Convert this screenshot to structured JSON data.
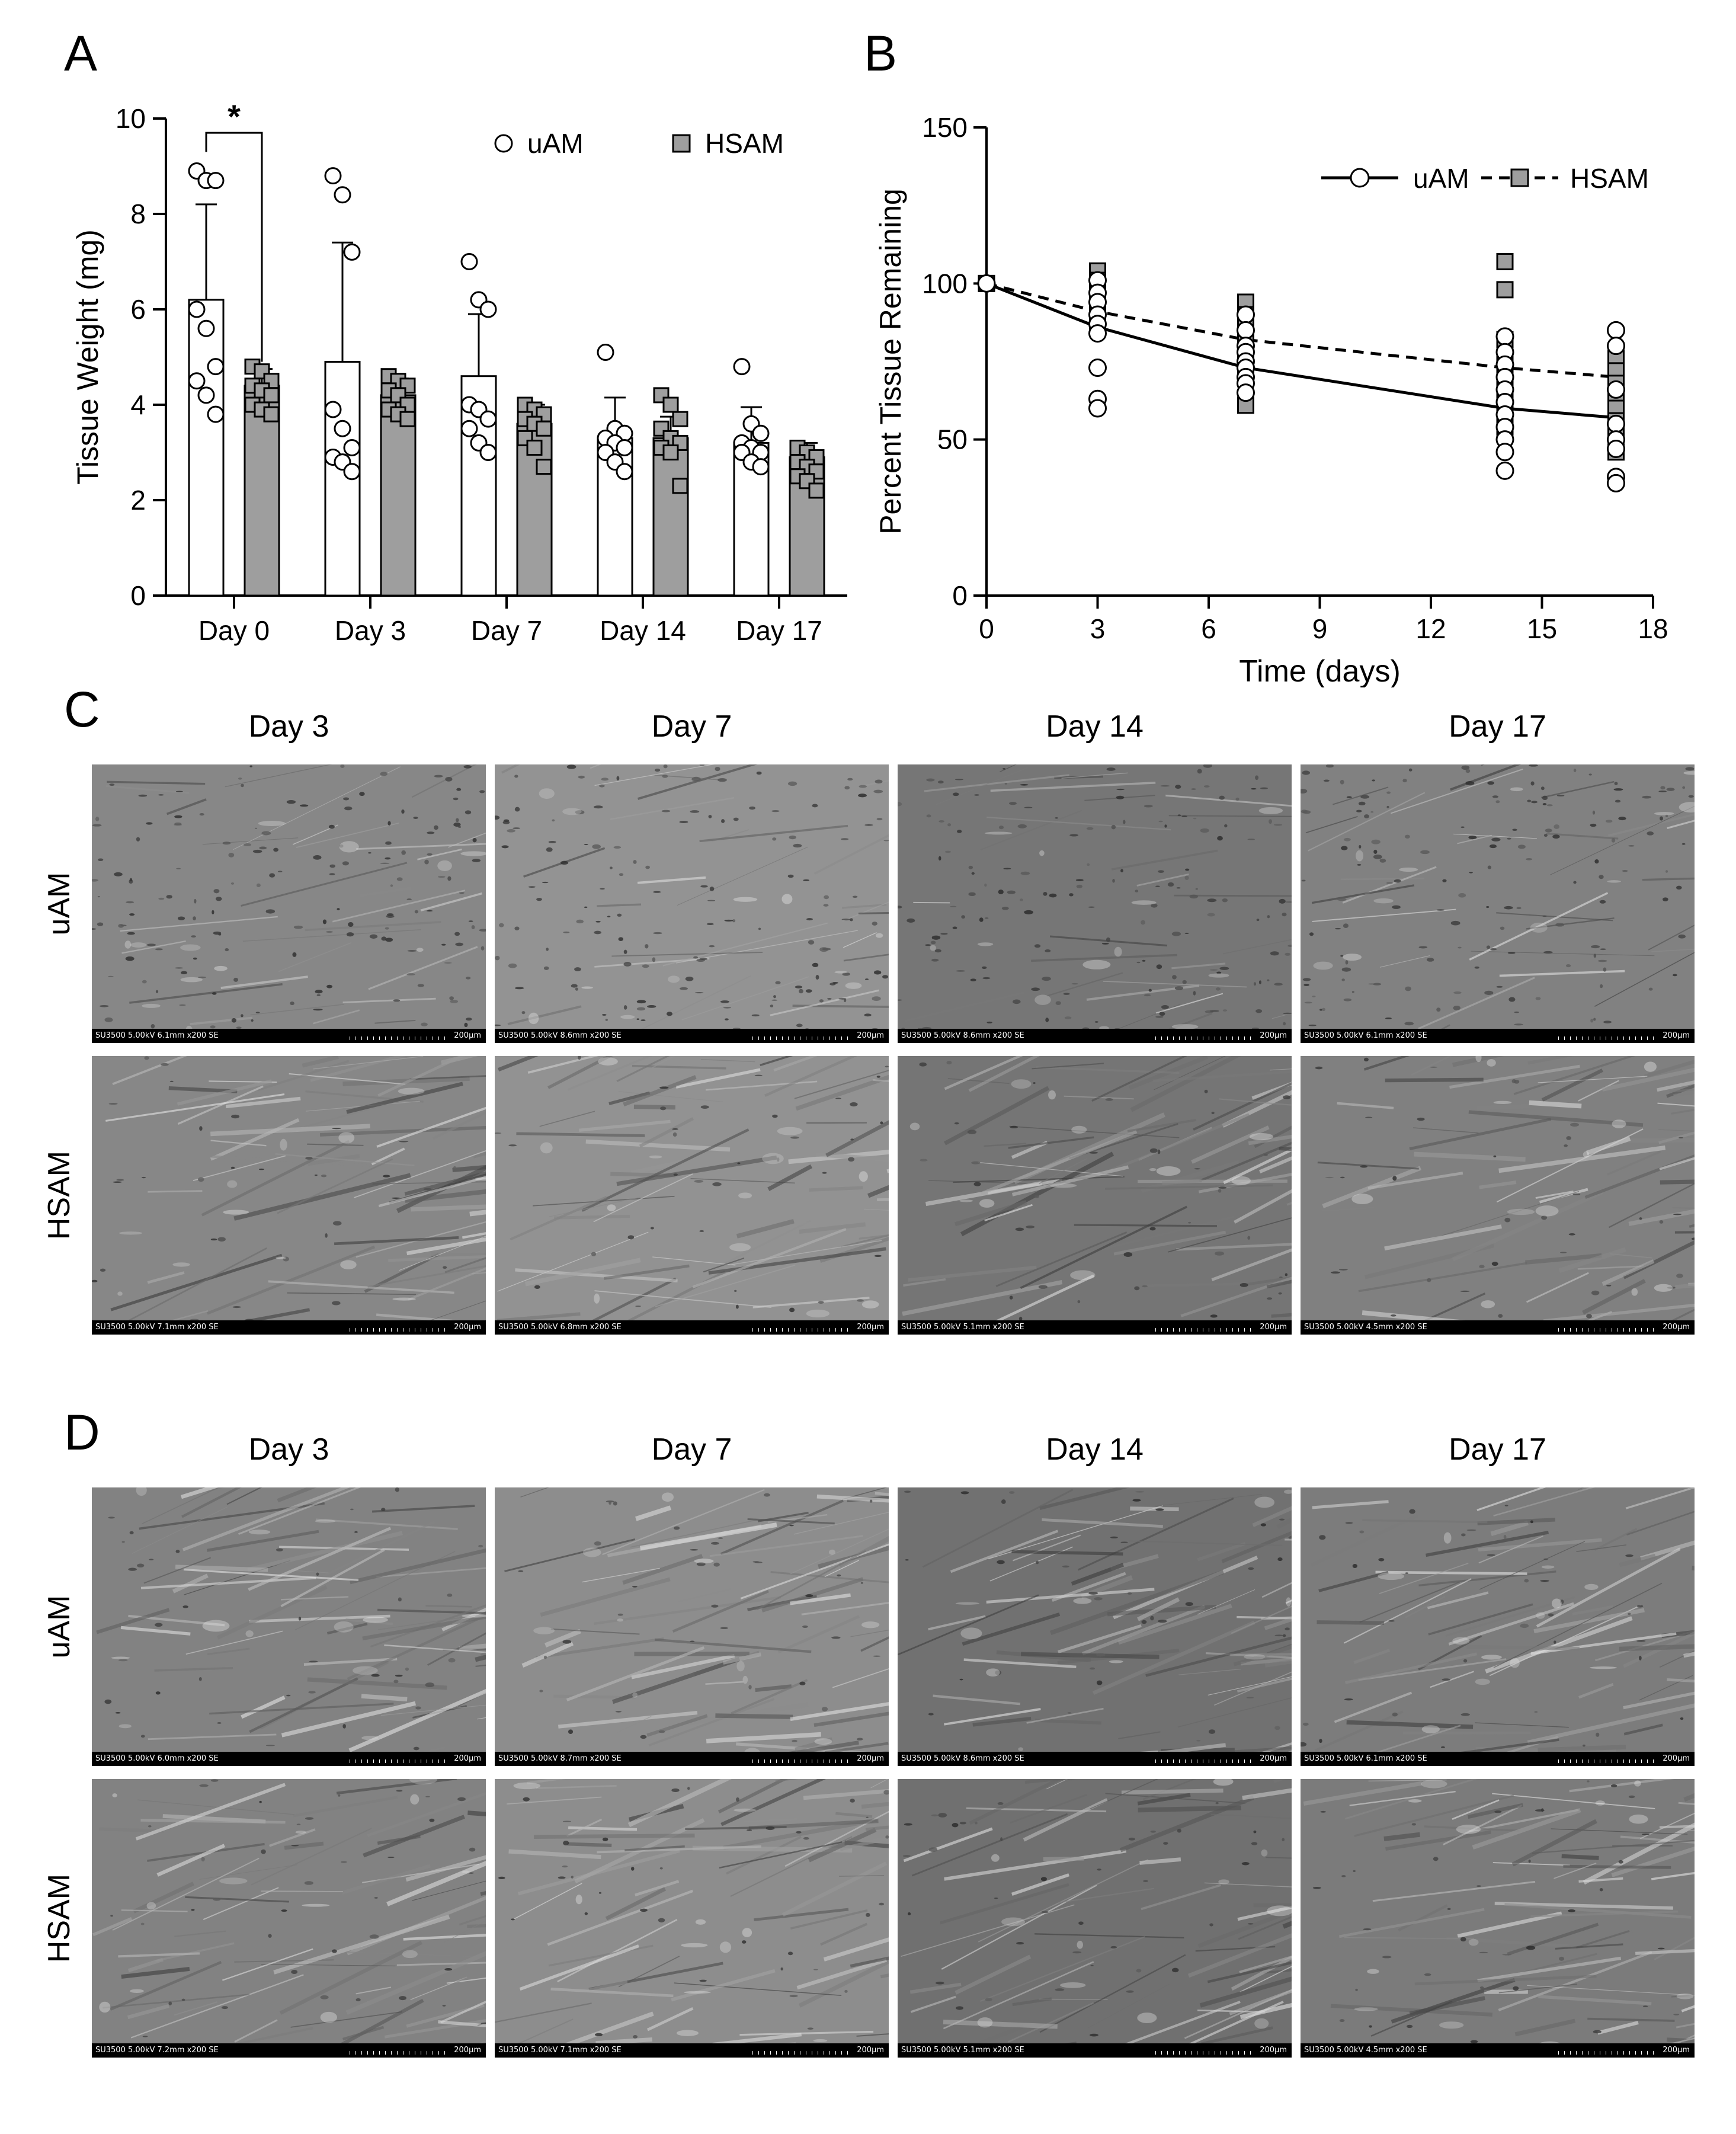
{
  "panels": {
    "A": "A",
    "B": "B",
    "C": "C",
    "D": "D"
  },
  "chart_data": [
    {
      "panel": "A",
      "type": "bar",
      "xlabel": "",
      "ylabel": "Tissue  Weight (mg)",
      "ylim": [
        0,
        10
      ],
      "yticks": [
        0,
        2,
        4,
        6,
        8,
        10
      ],
      "categories": [
        "Day 0",
        "Day 3",
        "Day 7",
        "Day 14",
        "Day 17"
      ],
      "legend": {
        "position": "top-right",
        "entries": [
          "uAM",
          "HSAM"
        ]
      },
      "annotation": "*",
      "series": [
        {
          "name": "uAM",
          "values": [
            6.2,
            4.9,
            4.6,
            3.3,
            3.2
          ],
          "error": [
            2.0,
            2.5,
            1.3,
            0.85,
            0.75
          ],
          "color": "#ffffff",
          "marker": "circle",
          "points": [
            [
              8.9,
              8.7,
              8.7,
              6.0,
              5.6,
              4.8,
              4.5,
              4.2,
              3.8
            ],
            [
              8.8,
              8.4,
              7.2,
              3.9,
              3.5,
              3.1,
              2.9,
              2.8,
              2.6
            ],
            [
              7.0,
              6.2,
              6.0,
              4.0,
              3.9,
              3.7,
              3.5,
              3.2,
              3.0
            ],
            [
              5.1,
              3.5,
              3.4,
              3.3,
              3.2,
              3.1,
              3.0,
              2.8,
              2.6
            ],
            [
              4.8,
              3.6,
              3.4,
              3.2,
              3.1,
              3.0,
              3.0,
              2.8,
              2.7
            ]
          ]
        },
        {
          "name": "HSAM",
          "values": [
            4.4,
            4.2,
            3.6,
            3.3,
            2.9
          ],
          "error": [
            0.35,
            0.35,
            0.4,
            0.45,
            0.3
          ],
          "color": "#9e9e9e",
          "marker": "square",
          "points": [
            [
              4.8,
              4.7,
              4.5,
              4.4,
              4.3,
              4.2,
              4.0,
              3.9,
              3.8
            ],
            [
              4.6,
              4.5,
              4.4,
              4.3,
              4.2,
              4.0,
              3.9,
              3.8,
              3.7
            ],
            [
              4.0,
              3.9,
              3.8,
              3.7,
              3.6,
              3.5,
              3.3,
              3.1,
              2.7
            ],
            [
              4.2,
              4.0,
              3.7,
              3.5,
              3.3,
              3.2,
              3.1,
              3.0,
              2.3
            ],
            [
              3.1,
              3.0,
              2.9,
              2.8,
              2.7,
              2.6,
              2.5,
              2.4,
              2.2
            ]
          ]
        }
      ]
    },
    {
      "panel": "B",
      "type": "scatter",
      "xlabel": "Time (days)",
      "ylabel": "Percent Tissue Remaining",
      "xlim": [
        0,
        18
      ],
      "ylim": [
        0,
        150
      ],
      "xticks": [
        0,
        3,
        6,
        9,
        12,
        15,
        18
      ],
      "yticks": [
        0,
        50,
        100,
        150
      ],
      "legend": {
        "position": "top-right",
        "entries": [
          "uAM",
          "HSAM"
        ]
      },
      "series": [
        {
          "name": "uAM",
          "marker": "circle",
          "line": "solid",
          "fit": [
            [
              0,
              100
            ],
            [
              3,
              86
            ],
            [
              7,
              73
            ],
            [
              14,
              60
            ],
            [
              17,
              57
            ]
          ],
          "points": [
            [
              0,
              100
            ],
            [
              3,
              101
            ],
            [
              3,
              97
            ],
            [
              3,
              94
            ],
            [
              3,
              90
            ],
            [
              3,
              87
            ],
            [
              3,
              84
            ],
            [
              3,
              73
            ],
            [
              3,
              63
            ],
            [
              3,
              60
            ],
            [
              7,
              90
            ],
            [
              7,
              85
            ],
            [
              7,
              80
            ],
            [
              7,
              78
            ],
            [
              7,
              75
            ],
            [
              7,
              73
            ],
            [
              7,
              70
            ],
            [
              7,
              68
            ],
            [
              7,
              65
            ],
            [
              14,
              83
            ],
            [
              14,
              78
            ],
            [
              14,
              74
            ],
            [
              14,
              70
            ],
            [
              14,
              66
            ],
            [
              14,
              62
            ],
            [
              14,
              58
            ],
            [
              14,
              54
            ],
            [
              14,
              50
            ],
            [
              14,
              46
            ],
            [
              14,
              40
            ],
            [
              17,
              85
            ],
            [
              17,
              80
            ],
            [
              17,
              66
            ],
            [
              17,
              55
            ],
            [
              17,
              50
            ],
            [
              17,
              47
            ],
            [
              17,
              38
            ],
            [
              17,
              36
            ]
          ]
        },
        {
          "name": "HSAM",
          "marker": "square",
          "line": "dashed",
          "fit": [
            [
              0,
              100
            ],
            [
              3,
              91
            ],
            [
              7,
              82
            ],
            [
              14,
              73
            ],
            [
              17,
              70
            ]
          ],
          "points": [
            [
              0,
              100
            ],
            [
              3,
              104
            ],
            [
              3,
              101
            ],
            [
              3,
              98
            ],
            [
              3,
              95
            ],
            [
              3,
              92
            ],
            [
              3,
              88
            ],
            [
              7,
              94
            ],
            [
              7,
              90
            ],
            [
              7,
              86
            ],
            [
              7,
              82
            ],
            [
              7,
              78
            ],
            [
              7,
              74
            ],
            [
              7,
              70
            ],
            [
              7,
              61
            ],
            [
              14,
              107
            ],
            [
              14,
              98
            ],
            [
              14,
              82
            ],
            [
              14,
              75
            ],
            [
              14,
              72
            ],
            [
              14,
              68
            ],
            [
              14,
              63
            ],
            [
              14,
              58
            ],
            [
              14,
              54
            ],
            [
              17,
              76
            ],
            [
              17,
              72
            ],
            [
              17,
              68
            ],
            [
              17,
              64
            ],
            [
              17,
              60
            ],
            [
              17,
              56
            ],
            [
              17,
              52
            ],
            [
              17,
              46
            ]
          ]
        }
      ]
    }
  ],
  "sem_grids": [
    {
      "panel": "C",
      "columns": [
        "Day 3",
        "Day 7",
        "Day 14",
        "Day 17"
      ],
      "rows": [
        "uAM",
        "HSAM"
      ],
      "captions": [
        [
          "SU3500 5.00kV 6.1mm x200 SE",
          "SU3500 5.00kV 8.6mm x200 SE",
          "SU3500 5.00kV 8.6mm x200 SE",
          "SU3500 5.00kV 6.1mm x200 SE"
        ],
        [
          "SU3500 5.00kV 7.1mm x200 SE",
          "SU3500 5.00kV 6.8mm x200 SE",
          "SU3500 5.00kV 5.1mm x200 SE",
          "SU3500 5.00kV 4.5mm x200 SE"
        ]
      ],
      "scale": "200μm"
    },
    {
      "panel": "D",
      "columns": [
        "Day 3",
        "Day 7",
        "Day 14",
        "Day 17"
      ],
      "rows": [
        "uAM",
        "HSAM"
      ],
      "captions": [
        [
          "SU3500 5.00kV 6.0mm x200 SE",
          "SU3500 5.00kV 8.7mm x200 SE",
          "SU3500 5.00kV 8.6mm x200 SE",
          "SU3500 5.00kV 6.1mm x200 SE"
        ],
        [
          "SU3500 5.00kV 7.2mm x200 SE",
          "SU3500 5.00kV 7.1mm x200 SE",
          "SU3500 5.00kV 5.1mm x200 SE",
          "SU3500 5.00kV 4.5mm x200 SE"
        ]
      ],
      "scale": "200μm"
    }
  ]
}
